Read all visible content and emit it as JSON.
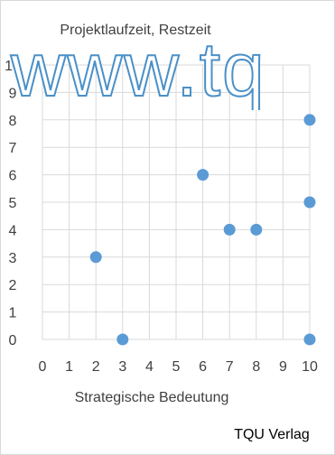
{
  "chart_data": {
    "type": "scatter",
    "title": "Projektlaufzeit, Restzeit",
    "xlabel": "Strategische Bedeutung",
    "ylabel": "",
    "xlim": [
      0,
      10
    ],
    "ylim": [
      0,
      10
    ],
    "x_ticks": [
      "0",
      "1",
      "2",
      "3",
      "4",
      "5",
      "6",
      "7",
      "8",
      "9",
      "10"
    ],
    "y_ticks": [
      "0",
      "1",
      "2",
      "3",
      "4",
      "5",
      "6",
      "7",
      "8",
      "9",
      "10"
    ],
    "grid": "vertical and horizontal gridlines",
    "series": [
      {
        "points": [
          {
            "x": 2,
            "y": 3
          },
          {
            "x": 3,
            "y": 0
          },
          {
            "x": 6,
            "y": 6
          },
          {
            "x": 7,
            "y": 4
          },
          {
            "x": 8,
            "y": 4
          },
          {
            "x": 10,
            "y": 8
          },
          {
            "x": 10,
            "y": 5
          },
          {
            "x": 10,
            "y": 0
          }
        ]
      }
    ],
    "colors": {
      "marker": "#5b9bd5",
      "grid": "#d9d9d9",
      "text": "#404040",
      "watermark": "#4a90c8"
    }
  },
  "watermark": {
    "text": "www.tq"
  },
  "publisher": {
    "label": "TQU Verlag"
  }
}
